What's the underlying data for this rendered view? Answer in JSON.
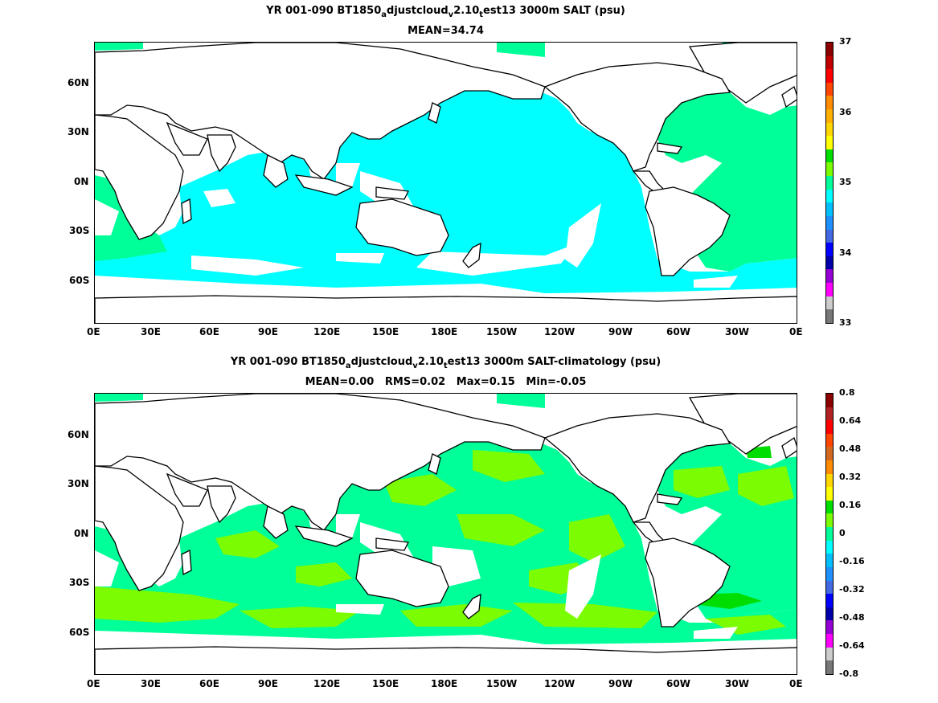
{
  "panels": [
    {
      "title_parts": [
        "YR 001-090 BT1850",
        "a",
        "djustcloud",
        "v",
        "2.10",
        "t",
        "est13 3000m SALT (psu)"
      ],
      "subtitle": "MEAN=34.74",
      "colorbar_labels": [
        "37",
        "36",
        "35",
        "34",
        "33"
      ],
      "colorbar_colors": [
        "#8b0000",
        "#c00000",
        "#ff0000",
        "#ff4500",
        "#ff8c00",
        "#ffb000",
        "#ffd700",
        "#ffff00",
        "#00dd00",
        "#7cfc00",
        "#00ff99",
        "#00ffff",
        "#00bfff",
        "#1e90ff",
        "#4169e1",
        "#0000ff",
        "#0000aa",
        "#9400d3",
        "#ff00ff",
        "#cccccc",
        "#777777"
      ],
      "fill": "#00ffff"
    },
    {
      "title_parts": [
        "YR 001-090 BT1850",
        "a",
        "djustcloud",
        "v",
        "2.10",
        "t",
        "est13 3000m SALT-climatology (psu)"
      ],
      "subtitle": "MEAN=0.00   RMS=0.02   Max=0.15   Min=-0.05",
      "colorbar_labels": [
        "0.8",
        "0.64",
        "0.48",
        "0.32",
        "0.16",
        "0",
        "-0.16",
        "-0.32",
        "-0.48",
        "-0.64",
        "-0.8"
      ],
      "colorbar_colors": [
        "#8b0000",
        "#b22222",
        "#ff0000",
        "#ff4500",
        "#d2691e",
        "#ff8c00",
        "#ffd700",
        "#ffff00",
        "#00dd00",
        "#7cfc00",
        "#00ff99",
        "#00ffff",
        "#00bfff",
        "#1e90ff",
        "#4169e1",
        "#0000ff",
        "#0000aa",
        "#9400d3",
        "#ff00ff",
        "#cccccc",
        "#777777"
      ],
      "fill": "#00ff99"
    }
  ],
  "lon_labels": [
    "0E",
    "30E",
    "60E",
    "90E",
    "120E",
    "150E",
    "180E",
    "150W",
    "120W",
    "90W",
    "60W",
    "30W",
    "0E"
  ],
  "lat_labels": [
    "60N",
    "30N",
    "0N",
    "30S",
    "60S"
  ],
  "colors": {
    "ocean_top": "#00ffff",
    "atlantic_top": "#00ff99",
    "diff_base": "#00ff99",
    "diff_pos": "#7cfc00",
    "diff_strong": "#00dd00",
    "land": "#ffffff",
    "coast": "#000000"
  }
}
